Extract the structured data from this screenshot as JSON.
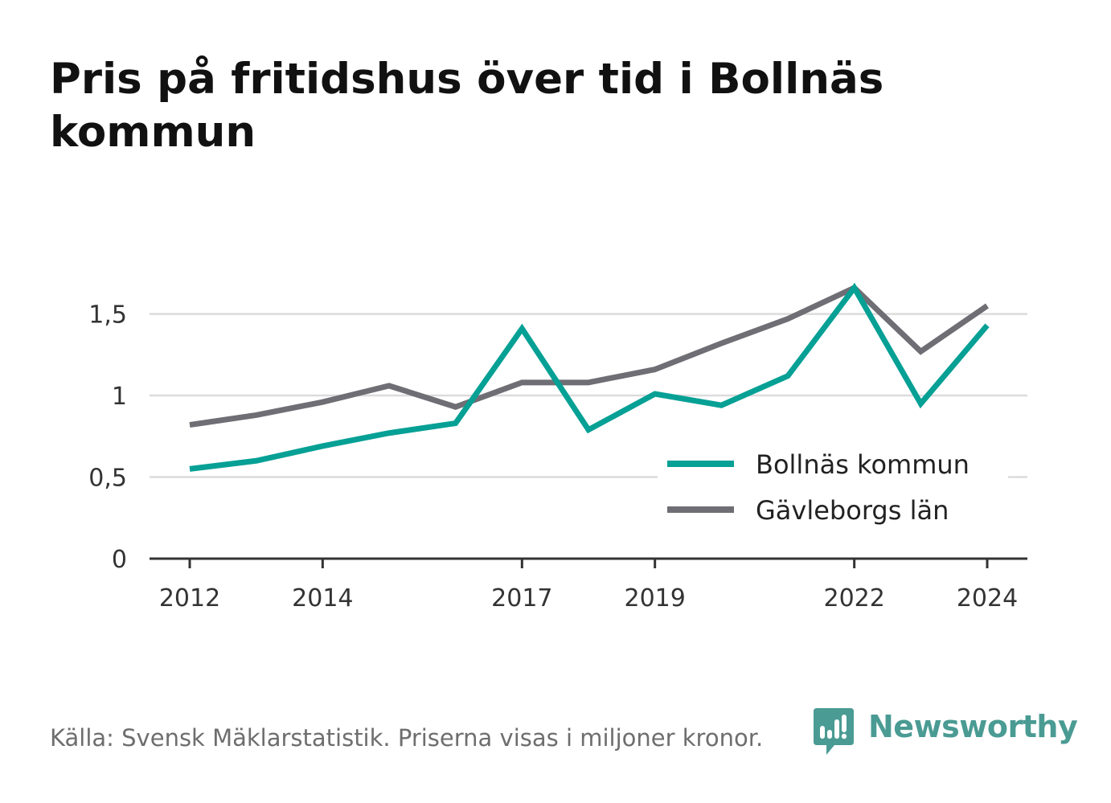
{
  "title": "Pris på fritidshus över tid i Bollnäs kommun",
  "source": "Källa: Svensk Mäklarstatistik. Priserna visas i miljoner kronor.",
  "brand": {
    "name": "Newsworthy",
    "color": "#4a9b93",
    "icon": "bar-chart-speech-bubble-icon"
  },
  "chart_data": {
    "type": "line",
    "x": [
      2012,
      2013,
      2014,
      2015,
      2016,
      2017,
      2018,
      2019,
      2020,
      2021,
      2022,
      2023,
      2024
    ],
    "x_ticks": [
      2012,
      2014,
      2017,
      2019,
      2022,
      2024
    ],
    "ylim": [
      0,
      1.7
    ],
    "y_ticks": [
      0,
      0.5,
      1,
      1.5
    ],
    "y_tick_labels": [
      "0",
      "0,5",
      "1",
      "1,5"
    ],
    "grid": true,
    "legend_position": "bottom-right",
    "series": [
      {
        "name": "Bollnäs kommun",
        "color": "#06a095",
        "values": [
          0.55,
          0.6,
          0.69,
          0.77,
          0.83,
          1.41,
          0.79,
          1.01,
          0.94,
          1.12,
          1.66,
          0.95,
          1.43
        ]
      },
      {
        "name": "Gävleborgs län",
        "color": "#6f6e74",
        "values": [
          0.82,
          0.88,
          0.96,
          1.06,
          0.93,
          1.08,
          1.08,
          1.16,
          1.32,
          1.47,
          1.66,
          1.27,
          1.55
        ]
      }
    ]
  }
}
